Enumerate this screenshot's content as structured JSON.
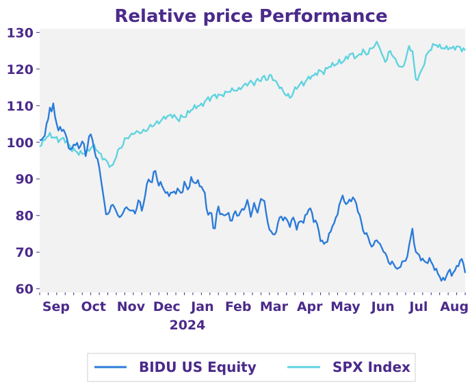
{
  "chart_data": {
    "type": "line",
    "title": "Relative price Performance",
    "xlabel": "",
    "ylabel": "",
    "ylim": [
      59,
      131
    ],
    "yticks": [
      60,
      70,
      80,
      90,
      100,
      110,
      120,
      130
    ],
    "xticks": [
      {
        "label": "Sep",
        "index": 4
      },
      {
        "label": "Oct",
        "index": 26
      },
      {
        "label": "Nov",
        "index": 48
      },
      {
        "label": "Dec",
        "index": 69
      },
      {
        "label": "Jan",
        "index": 90
      },
      {
        "label": "Feb",
        "index": 111
      },
      {
        "label": "Mar",
        "index": 132
      },
      {
        "label": "Apr",
        "index": 153
      },
      {
        "label": "May",
        "index": 174
      },
      {
        "label": "Jun",
        "index": 196
      },
      {
        "label": "Jul",
        "index": 217
      },
      {
        "label": "Aug",
        "index": 238
      }
    ],
    "year_label": "2024",
    "legend_position": "bottom",
    "grid": false,
    "n_points": 251,
    "series": [
      {
        "name": "BIDU US Equity",
        "color": "#2b7bd9",
        "anchors": [
          [
            0,
            100
          ],
          [
            3,
            102
          ],
          [
            5,
            106
          ],
          [
            6,
            110
          ],
          [
            7,
            108
          ],
          [
            8,
            110.5
          ],
          [
            10,
            106
          ],
          [
            11,
            103
          ],
          [
            13,
            104
          ],
          [
            15,
            103
          ],
          [
            17,
            100
          ],
          [
            19,
            97
          ],
          [
            20,
            99
          ],
          [
            22,
            100
          ],
          [
            24,
            98
          ],
          [
            26,
            101
          ],
          [
            28,
            96
          ],
          [
            30,
            102
          ],
          [
            32,
            101
          ],
          [
            34,
            96
          ],
          [
            36,
            94
          ],
          [
            38,
            87
          ],
          [
            40,
            81
          ],
          [
            42,
            80
          ],
          [
            44,
            84
          ],
          [
            46,
            81
          ],
          [
            48,
            80
          ],
          [
            50,
            79.5
          ],
          [
            52,
            83
          ],
          [
            54,
            81
          ],
          [
            56,
            82
          ],
          [
            58,
            80
          ],
          [
            60,
            85
          ],
          [
            62,
            81
          ],
          [
            64,
            86
          ],
          [
            66,
            90
          ],
          [
            68,
            89
          ],
          [
            70,
            93
          ],
          [
            72,
            88
          ],
          [
            74,
            89
          ],
          [
            76,
            86
          ],
          [
            80,
            86
          ],
          [
            84,
            87
          ],
          [
            86,
            86
          ],
          [
            88,
            89
          ],
          [
            90,
            87
          ],
          [
            92,
            90
          ],
          [
            94,
            89
          ],
          [
            96,
            89
          ],
          [
            98,
            88
          ],
          [
            100,
            86
          ],
          [
            102,
            80
          ],
          [
            104,
            81
          ],
          [
            106,
            75
          ],
          [
            108,
            83
          ],
          [
            110,
            80
          ],
          [
            112,
            80
          ],
          [
            114,
            81
          ],
          [
            116,
            78
          ],
          [
            118,
            81
          ],
          [
            120,
            80
          ],
          [
            122,
            81
          ],
          [
            124,
            82
          ],
          [
            126,
            84
          ],
          [
            128,
            80
          ],
          [
            130,
            83
          ],
          [
            132,
            81
          ],
          [
            134,
            84
          ],
          [
            136,
            85
          ],
          [
            138,
            78
          ],
          [
            140,
            76
          ],
          [
            142,
            74
          ],
          [
            144,
            77
          ],
          [
            146,
            80
          ],
          [
            148,
            79
          ],
          [
            150,
            79
          ],
          [
            152,
            77
          ],
          [
            154,
            80
          ],
          [
            156,
            76
          ],
          [
            158,
            79
          ],
          [
            160,
            78
          ],
          [
            162,
            81
          ],
          [
            164,
            82
          ],
          [
            166,
            79
          ],
          [
            168,
            78
          ],
          [
            170,
            74
          ],
          [
            172,
            72
          ],
          [
            174,
            73
          ],
          [
            176,
            75
          ],
          [
            178,
            78
          ],
          [
            180,
            79
          ],
          [
            182,
            84
          ],
          [
            184,
            85
          ],
          [
            186,
            83
          ],
          [
            188,
            84
          ],
          [
            190,
            85
          ],
          [
            192,
            83
          ],
          [
            194,
            80
          ],
          [
            196,
            76
          ],
          [
            198,
            75
          ],
          [
            200,
            73
          ],
          [
            202,
            71
          ],
          [
            204,
            74
          ],
          [
            206,
            72
          ],
          [
            208,
            71
          ],
          [
            210,
            69
          ],
          [
            212,
            67
          ],
          [
            214,
            67
          ],
          [
            216,
            66
          ],
          [
            218,
            65
          ],
          [
            220,
            68
          ],
          [
            222,
            67
          ],
          [
            224,
            72
          ],
          [
            226,
            76
          ],
          [
            228,
            70
          ],
          [
            230,
            69
          ],
          [
            232,
            68
          ],
          [
            234,
            67
          ],
          [
            236,
            68
          ],
          [
            238,
            67
          ],
          [
            240,
            65
          ],
          [
            242,
            64
          ],
          [
            244,
            62
          ],
          [
            246,
            63
          ],
          [
            248,
            65
          ],
          [
            250,
            64
          ],
          [
            252,
            65
          ],
          [
            254,
            67
          ],
          [
            256,
            68
          ],
          [
            258,
            65
          ]
        ]
      },
      {
        "name": "SPX Index",
        "color": "#5fd3e0",
        "anchors": [
          [
            0,
            99
          ],
          [
            2,
            100
          ],
          [
            4,
            101.5
          ],
          [
            6,
            102
          ],
          [
            8,
            101.5
          ],
          [
            10,
            101
          ],
          [
            12,
            100.5
          ],
          [
            14,
            101
          ],
          [
            16,
            100.5
          ],
          [
            18,
            99
          ],
          [
            20,
            98
          ],
          [
            22,
            97.5
          ],
          [
            24,
            97
          ],
          [
            26,
            97
          ],
          [
            28,
            97
          ],
          [
            30,
            98
          ],
          [
            32,
            99
          ],
          [
            34,
            98.5
          ],
          [
            36,
            97
          ],
          [
            38,
            96
          ],
          [
            40,
            95
          ],
          [
            42,
            94
          ],
          [
            44,
            93
          ],
          [
            46,
            96
          ],
          [
            48,
            98
          ],
          [
            50,
            99
          ],
          [
            52,
            101
          ],
          [
            54,
            101.5
          ],
          [
            56,
            102
          ],
          [
            58,
            103
          ],
          [
            60,
            102.5
          ],
          [
            62,
            103
          ],
          [
            64,
            103
          ],
          [
            66,
            104
          ],
          [
            68,
            104.5
          ],
          [
            70,
            105
          ],
          [
            72,
            105.5
          ],
          [
            74,
            106
          ],
          [
            76,
            107
          ],
          [
            78,
            107
          ],
          [
            80,
            107.5
          ],
          [
            82,
            107
          ],
          [
            84,
            106
          ],
          [
            86,
            107
          ],
          [
            88,
            107
          ],
          [
            90,
            108
          ],
          [
            92,
            109
          ],
          [
            94,
            109.5
          ],
          [
            96,
            110
          ],
          [
            98,
            110
          ],
          [
            100,
            111
          ],
          [
            102,
            112
          ],
          [
            104,
            112
          ],
          [
            106,
            113
          ],
          [
            108,
            112.5
          ],
          [
            110,
            113
          ],
          [
            112,
            113
          ],
          [
            114,
            114
          ],
          [
            116,
            114
          ],
          [
            118,
            114.5
          ],
          [
            120,
            114
          ],
          [
            122,
            115
          ],
          [
            124,
            115.5
          ],
          [
            126,
            116
          ],
          [
            128,
            116.5
          ],
          [
            130,
            116
          ],
          [
            132,
            117
          ],
          [
            134,
            117
          ],
          [
            136,
            118
          ],
          [
            138,
            117
          ],
          [
            140,
            118.5
          ],
          [
            142,
            117
          ],
          [
            144,
            116
          ],
          [
            146,
            115
          ],
          [
            148,
            113.5
          ],
          [
            150,
            113
          ],
          [
            152,
            112
          ],
          [
            154,
            114
          ],
          [
            156,
            115
          ],
          [
            158,
            116
          ],
          [
            160,
            116
          ],
          [
            162,
            117
          ],
          [
            164,
            118
          ],
          [
            166,
            118
          ],
          [
            168,
            119
          ],
          [
            170,
            119.5
          ],
          [
            172,
            119
          ],
          [
            174,
            120
          ],
          [
            176,
            121
          ],
          [
            178,
            121
          ],
          [
            180,
            121.5
          ],
          [
            182,
            122
          ],
          [
            184,
            122
          ],
          [
            186,
            123
          ],
          [
            188,
            124
          ],
          [
            190,
            124
          ],
          [
            192,
            123
          ],
          [
            194,
            124
          ],
          [
            196,
            125
          ],
          [
            198,
            124
          ],
          [
            200,
            125
          ],
          [
            202,
            126
          ],
          [
            204,
            127
          ],
          [
            206,
            126.5
          ],
          [
            208,
            123
          ],
          [
            210,
            122
          ],
          [
            212,
            125
          ],
          [
            214,
            124
          ],
          [
            216,
            122
          ],
          [
            218,
            121
          ],
          [
            220,
            120
          ],
          [
            222,
            123
          ],
          [
            224,
            126
          ],
          [
            226,
            125
          ],
          [
            228,
            117
          ],
          [
            230,
            118
          ],
          [
            232,
            120
          ],
          [
            234,
            123
          ],
          [
            236,
            125
          ],
          [
            238,
            126
          ],
          [
            240,
            127
          ],
          [
            242,
            126
          ],
          [
            244,
            126
          ],
          [
            246,
            125.5
          ],
          [
            248,
            126
          ],
          [
            250,
            125.5
          ],
          [
            252,
            126
          ],
          [
            254,
            126
          ],
          [
            256,
            125.5
          ],
          [
            258,
            125
          ]
        ]
      }
    ]
  }
}
